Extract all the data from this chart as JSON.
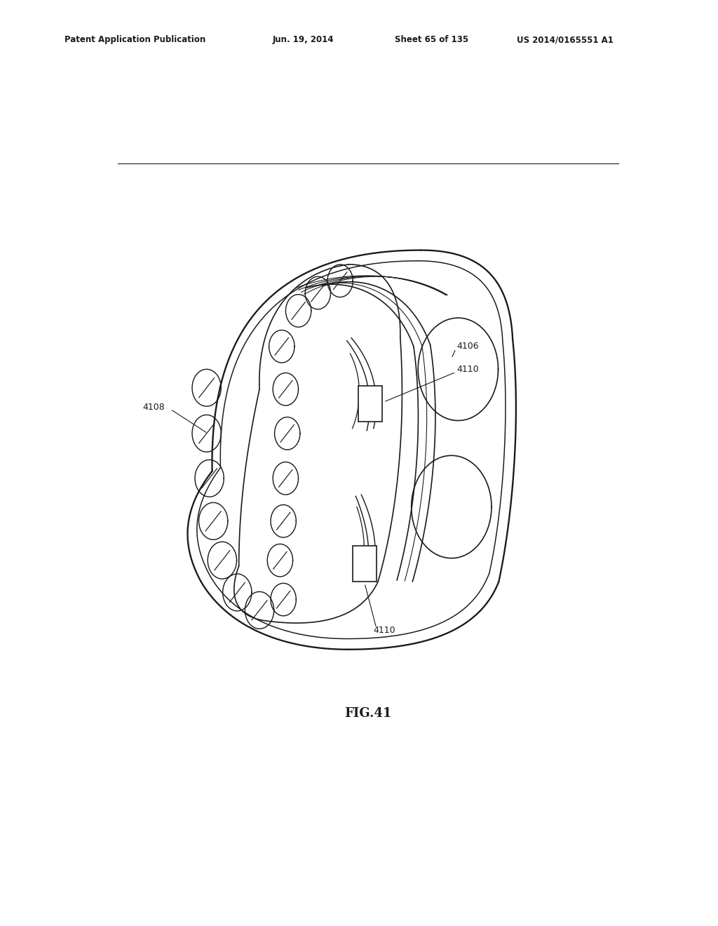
{
  "header_text": "Patent Application Publication",
  "header_date": "Jun. 19, 2014",
  "header_sheet": "Sheet 65 of 135",
  "header_patent": "US 2014/0165551 A1",
  "fig_label": "FIG.41",
  "bg_color": "#ffffff",
  "line_color": "#1a1a1a",
  "line_width": 1.2
}
